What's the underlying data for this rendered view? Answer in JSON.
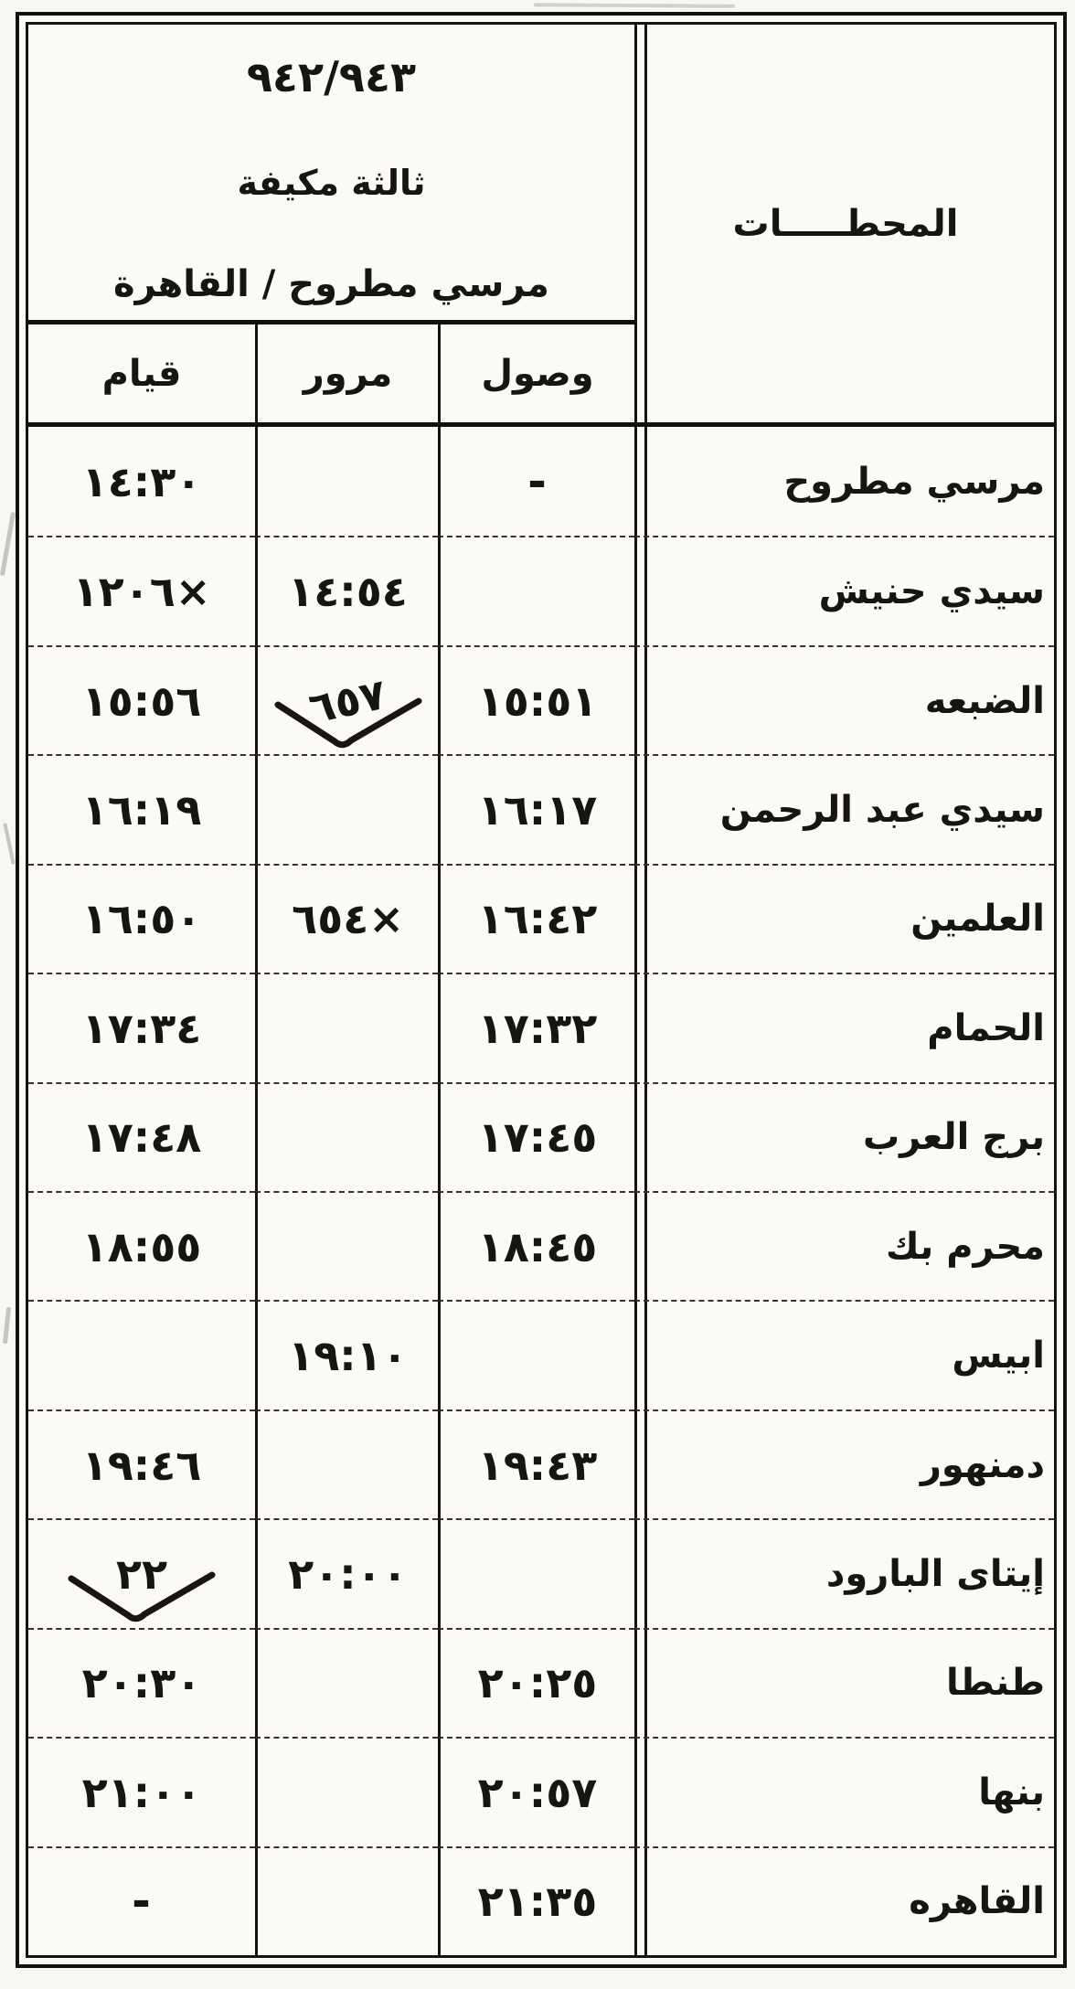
{
  "header": {
    "train_numbers": "٩٤٢/٩٤٣",
    "class_label": "ثالثة مكيفة",
    "route": "مرسي مطروح / القاهرة",
    "stations_header": "المحطـــــات"
  },
  "columns": {
    "depart": "قيام",
    "pass": "مرور",
    "arrive": "وصول"
  },
  "colors": {
    "ink": "#161412",
    "paper": "#fbfaf6"
  },
  "rows": [
    {
      "station": "مرسي مطروح",
      "arrive": "-",
      "pass": "",
      "depart": "١٤:٣٠"
    },
    {
      "station": "سيدي حنيش",
      "arrive": "",
      "pass": "١٤:٥٤",
      "depart": "١٢٠٦×"
    },
    {
      "station": "الضبعه",
      "arrive": "١٥:٥١",
      "pass": "٦٥٧",
      "depart": "١٥:٥٦",
      "pass_mark": "check",
      "pass_tilt": true
    },
    {
      "station": "سيدي عبد الرحمن",
      "arrive": "١٦:١٧",
      "pass": "",
      "depart": "١٦:١٩"
    },
    {
      "station": "العلمين",
      "arrive": "١٦:٤٢",
      "pass": "٦٥٤×",
      "depart": "١٦:٥٠"
    },
    {
      "station": "الحمام",
      "arrive": "١٧:٣٢",
      "pass": "",
      "depart": "١٧:٣٤"
    },
    {
      "station": "برج العرب",
      "arrive": "١٧:٤٥",
      "pass": "",
      "depart": "١٧:٤٨"
    },
    {
      "station": "محرم بك",
      "arrive": "١٨:٤٥",
      "pass": "",
      "depart": "١٨:٥٥"
    },
    {
      "station": "ابيس",
      "arrive": "",
      "pass": "١٩:١٠",
      "depart": ""
    },
    {
      "station": "دمنهور",
      "arrive": "١٩:٤٣",
      "pass": "",
      "depart": "١٩:٤٦"
    },
    {
      "station": "إيتاى البارود",
      "arrive": "",
      "pass": "٢٠:٠٠",
      "depart": "٢٢",
      "depart_mark": "check"
    },
    {
      "station": "طنطا",
      "arrive": "٢٠:٢٥",
      "pass": "",
      "depart": "٢٠:٣٠"
    },
    {
      "station": "بنها",
      "arrive": "٢٠:٥٧",
      "pass": "",
      "depart": "٢١:٠٠"
    },
    {
      "station": "القاهره",
      "arrive": "٢١:٣٥",
      "pass": "",
      "depart": "-"
    }
  ]
}
